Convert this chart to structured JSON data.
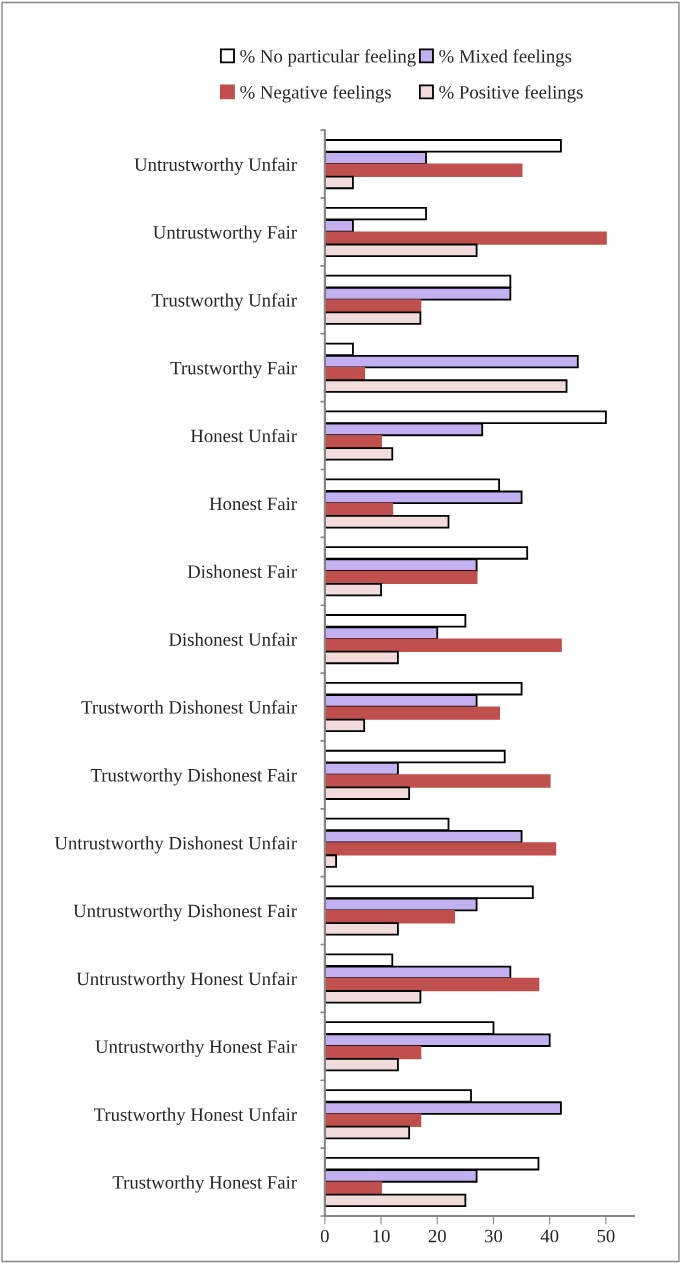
{
  "chart_data": {
    "type": "bar",
    "orientation": "horizontal",
    "categories": [
      "Untrustworthy Unfair",
      "Untrustworthy Fair",
      "Trustworthy Unfair",
      "Trustworthy Fair",
      "Honest Unfair",
      "Honest Fair",
      "Dishonest Fair",
      "Dishonest Unfair",
      "Trustworth Dishonest Unfair",
      "Trustworthy Dishonest Fair",
      "Untrustworthy Dishonest Unfair",
      "Untrustworthy Dishonest Fair",
      "Untrustworthy Honest Unfair",
      "Untrustworthy Honest Fair",
      "Trustworthy Honest Unfair",
      "Trustworthy Honest Fair"
    ],
    "series": [
      {
        "name": "% No particular feeling",
        "color": "#ffffff",
        "values": [
          42,
          18,
          33,
          5,
          50,
          31,
          36,
          25,
          35,
          32,
          22,
          37,
          12,
          30,
          26,
          38
        ]
      },
      {
        "name": "% Mixed feelings",
        "color": "#c3b0f0",
        "values": [
          18,
          5,
          33,
          45,
          28,
          35,
          27,
          20,
          27,
          13,
          35,
          27,
          33,
          40,
          42,
          27
        ]
      },
      {
        "name": "% Negative feelings",
        "color": "#c0504d",
        "values": [
          35,
          50,
          17,
          7,
          10,
          12,
          27,
          42,
          31,
          40,
          41,
          23,
          38,
          17,
          17,
          10
        ]
      },
      {
        "name": "% Positive feelings",
        "color": "#f2dcdb",
        "values": [
          5,
          27,
          17,
          43,
          12,
          22,
          10,
          13,
          7,
          15,
          2,
          13,
          17,
          13,
          15,
          25
        ]
      }
    ],
    "xlim": [
      0,
      55
    ],
    "xticks": [
      0,
      10,
      20,
      30,
      40,
      50
    ],
    "grid": false,
    "legend": "top"
  }
}
